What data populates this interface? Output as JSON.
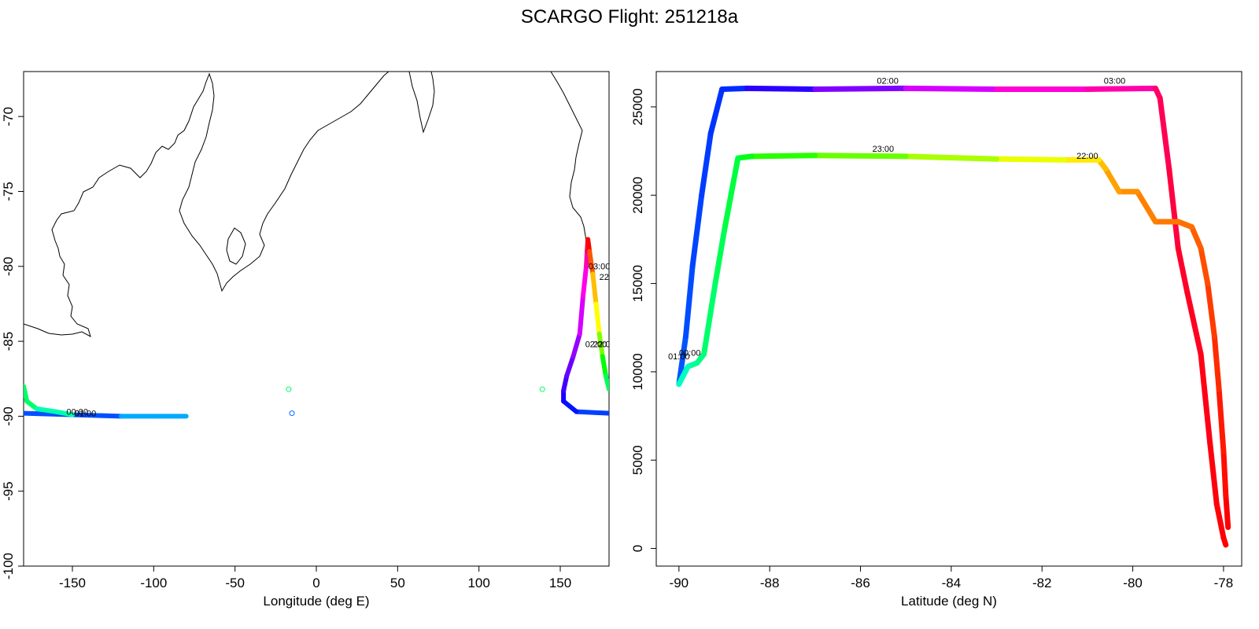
{
  "title": "SCARGO Flight: 251218a",
  "colors": {
    "outbound": "#0050ff",
    "return": "#00ff66",
    "coast": "#000000"
  },
  "chart_data": [
    {
      "type": "scatter",
      "name": "map",
      "xlabel": "Longitude (deg E)",
      "ylabel": "",
      "xlim": [
        -180,
        180
      ],
      "ylim": [
        -100,
        -67
      ],
      "xticks": [
        "-150",
        "-100",
        "-50",
        "0",
        "50",
        "100",
        "150"
      ],
      "yticks": [
        "-70",
        "-75",
        "-80",
        "-85",
        "-90",
        "-95",
        "-100"
      ],
      "time_labels": [
        {
          "text": "00:00",
          "lon": -147,
          "lat": -89.9
        },
        {
          "text": "01:00",
          "lon": -142,
          "lat": -90.0
        },
        {
          "text": "03:00",
          "lon": 174,
          "lat": -80.2
        },
        {
          "text": "22",
          "lon": 177,
          "lat": -80.9
        },
        {
          "text": "02:00",
          "lon": 172,
          "lat": -85.4
        },
        {
          "text": "22:00",
          "lon": 177,
          "lat": -85.4
        }
      ],
      "stray_points": [
        {
          "lon": -17,
          "lat": -88.2,
          "color": "#00ff66"
        },
        {
          "lon": -15,
          "lat": -89.8,
          "color": "#0066ff"
        },
        {
          "lon": 139,
          "lat": -88.2,
          "color": "#00ff66"
        }
      ],
      "series": [
        {
          "name": "outbound",
          "lon": [
            -180,
            -150,
            -120,
            -100,
            -80
          ],
          "lat": [
            -89.8,
            -89.9,
            -90.0,
            -90.0,
            -90.0
          ],
          "color_start": "#0050ff",
          "color_end": "#00aaff"
        },
        {
          "name": "return",
          "lon": [
            -180,
            -178,
            -172,
            -160,
            -150
          ],
          "lat": [
            -88.0,
            -89.0,
            -89.5,
            -89.7,
            -89.9
          ],
          "color_start": "#00ff66",
          "color_end": "#00ffaa"
        },
        {
          "name": "far-side",
          "lon": [
            180,
            160,
            152,
            152,
            154,
            158,
            162,
            164,
            166,
            166.5,
            167,
            168,
            170,
            172,
            174,
            176,
            178,
            180
          ],
          "lat": [
            -89.8,
            -89.7,
            -89.0,
            -88.3,
            -87.3,
            -86.0,
            -84.5,
            -82.0,
            -80.0,
            -79.0,
            -78.2,
            -79.0,
            -80.5,
            -82.5,
            -84.5,
            -86.0,
            -87.3,
            -88.2
          ],
          "hues": [
            225,
            235,
            245,
            255,
            265,
            275,
            290,
            305,
            320,
            340,
            360,
            20,
            45,
            60,
            90,
            120,
            140,
            150
          ]
        }
      ]
    },
    {
      "type": "line",
      "name": "altitude",
      "xlabel": "Latitude (deg N)",
      "ylabel": "",
      "xlim": [
        -90.5,
        -77.6
      ],
      "ylim": [
        -1000,
        27000
      ],
      "xticks": [
        "-90",
        "-88",
        "-86",
        "-84",
        "-82",
        "-80",
        "-78"
      ],
      "yticks": [
        "0",
        "5000",
        "10000",
        "15000",
        "20000",
        "25000"
      ],
      "time_labels": [
        {
          "text": "02:00",
          "lat": -85.4,
          "alt": 26300
        },
        {
          "text": "03:00",
          "lat": -80.4,
          "alt": 26300
        },
        {
          "text": "23:00",
          "lat": -85.5,
          "alt": 22450
        },
        {
          "text": "22:00",
          "lat": -81.0,
          "alt": 22050
        },
        {
          "text": "01:00",
          "lat": -90.0,
          "alt": 10700
        },
        {
          "text": "00:00",
          "lat": -89.76,
          "alt": 10900
        }
      ],
      "series": [
        {
          "name": "outbound",
          "lat": [
            -90.0,
            -89.85,
            -89.7,
            -89.5,
            -89.3,
            -89.05,
            -88.5,
            -87.0,
            -85.0,
            -83.0,
            -81.0,
            -79.5,
            -79.4,
            -79.2,
            -79.0,
            -78.8,
            -78.5,
            -78.3,
            -78.15,
            -78.0,
            -77.95
          ],
          "alt": [
            9300,
            12000,
            16000,
            20000,
            23500,
            26000,
            26050,
            26000,
            26050,
            26000,
            26000,
            26050,
            25500,
            21500,
            17000,
            14500,
            11000,
            6000,
            2500,
            600,
            200
          ],
          "hues": [
            220,
            222,
            224,
            226,
            228,
            230,
            250,
            270,
            290,
            310,
            320,
            335,
            340,
            345,
            350,
            352,
            355,
            357,
            358,
            359,
            360
          ]
        },
        {
          "name": "return",
          "lat": [
            -77.9,
            -77.95,
            -78.0,
            -78.1,
            -78.2,
            -78.35,
            -78.5,
            -78.7,
            -79.0,
            -79.5,
            -79.9,
            -80.3,
            -80.6,
            -80.75,
            -81.5,
            -83.0,
            -85.0,
            -87.0,
            -88.4,
            -88.7,
            -89.0,
            -89.2,
            -89.45,
            -89.6,
            -89.8,
            -90.0
          ],
          "alt": [
            1200,
            3000,
            5500,
            9000,
            12000,
            15000,
            17000,
            18200,
            18500,
            18500,
            20200,
            20200,
            21500,
            22000,
            22000,
            22050,
            22200,
            22250,
            22200,
            22100,
            18000,
            15000,
            11000,
            10500,
            10300,
            9300
          ],
          "hues": [
            0,
            3,
            6,
            10,
            14,
            18,
            22,
            26,
            28,
            30,
            34,
            38,
            45,
            55,
            65,
            80,
            95,
            110,
            125,
            135,
            140,
            145,
            150,
            155,
            165,
            175
          ]
        }
      ]
    }
  ]
}
